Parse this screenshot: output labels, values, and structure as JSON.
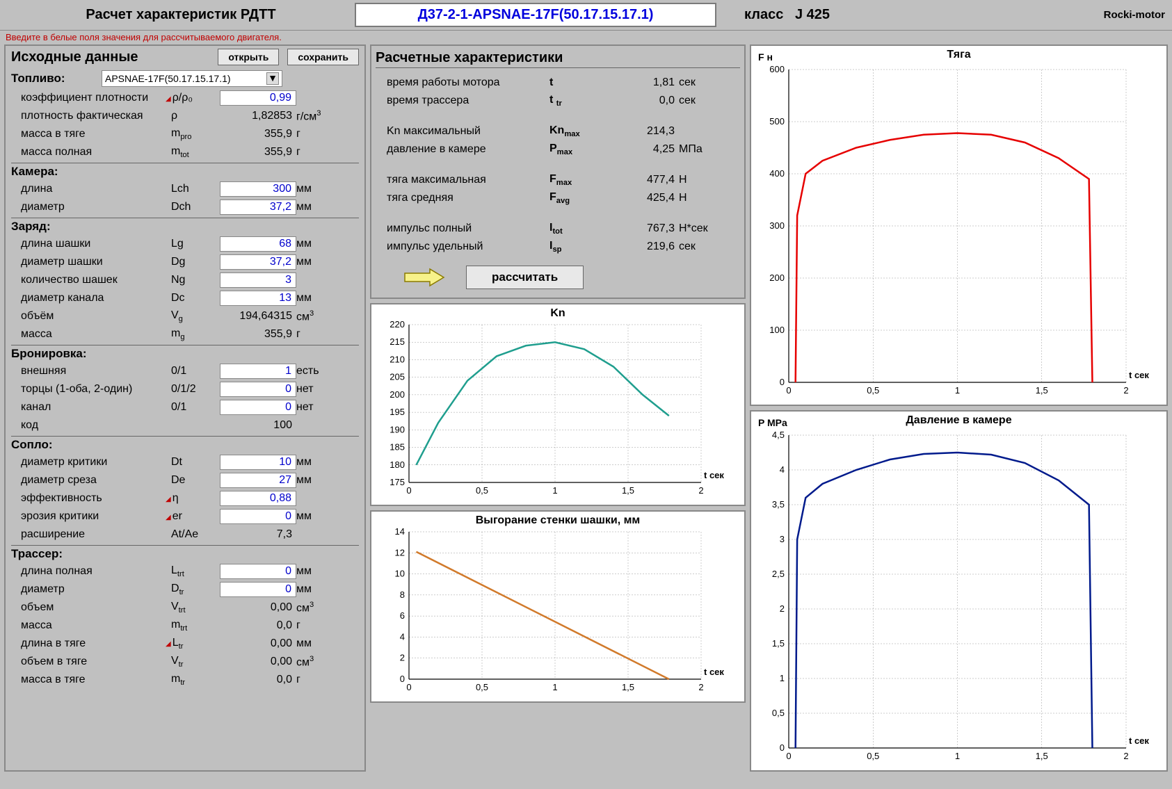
{
  "header": {
    "title": "Расчет характеристик РДТТ",
    "motor_code": "Д37-2-1-APSNAE-17F(50.17.15.17.1)",
    "class_label": "класс",
    "class_value": "J 425",
    "brand": "Rocki-motor"
  },
  "hint": "Введите в белые поля значения для рассчитываемого двигателя.",
  "left": {
    "title": "Исходные данные",
    "btn_open": "открыть",
    "btn_save": "сохранить",
    "fuel": {
      "title": "Топливо:",
      "dropdown": "APSNAE-17F(50.17.15.17.1)",
      "coef_label": "коэффициент плотности",
      "coef_sym": "ρ/ρ₀",
      "coef_val": "0,99",
      "dens_label": "плотность фактическая",
      "dens_sym": "ρ",
      "dens_val": "1,82853",
      "dens_unit": "г/см",
      "mpro_label": "масса в тяге",
      "mpro_sym": "m",
      "mpro_sub": "pro",
      "mpro_val": "355,9",
      "mpro_unit": "г",
      "mtot_label": "масса полная",
      "mtot_sym": "m",
      "mtot_sub": "tot",
      "mtot_val": "355,9",
      "mtot_unit": "г"
    },
    "chamber": {
      "title": "Камера:",
      "len_label": "длина",
      "len_sym": "Lch",
      "len_val": "300",
      "len_unit": "мм",
      "dia_label": "диаметр",
      "dia_sym": "Dch",
      "dia_val": "37,2",
      "dia_unit": "мм"
    },
    "grain": {
      "title": "Заряд:",
      "lg_label": "длина шашки",
      "lg_sym": "Lg",
      "lg_val": "68",
      "lg_unit": "мм",
      "dg_label": "диаметр шашки",
      "dg_sym": "Dg",
      "dg_val": "37,2",
      "dg_unit": "мм",
      "ng_label": "количество шашек",
      "ng_sym": "Ng",
      "ng_val": "3",
      "dc_label": "диаметр канала",
      "dc_sym": "Dc",
      "dc_val": "13",
      "dc_unit": "мм",
      "vg_label": "объём",
      "vg_sym": "V",
      "vg_sub": "g",
      "vg_val": "194,64315",
      "vg_unit": "см",
      "mg_label": "масса",
      "mg_sym": "m",
      "mg_sub": "g",
      "mg_val": "355,9",
      "mg_unit": "г"
    },
    "armor": {
      "title": "Бронировка:",
      "ext_label": "внешняя",
      "ext_sym": "0/1",
      "ext_val": "1",
      "ext_unit": "есть",
      "end_label": "торцы (1-оба, 2-один)",
      "end_sym": "0/1/2",
      "end_val": "0",
      "end_unit": "нет",
      "chan_label": "канал",
      "chan_sym": "0/1",
      "chan_val": "0",
      "chan_unit": "нет",
      "code_label": "код",
      "code_val": "100"
    },
    "nozzle": {
      "title": "Сопло:",
      "dt_label": "диаметр критики",
      "dt_sym": "Dt",
      "dt_val": "10",
      "dt_unit": "мм",
      "de_label": "диаметр среза",
      "de_sym": "De",
      "de_val": "27",
      "de_unit": "мм",
      "eff_label": "эффективность",
      "eff_sym": "η",
      "eff_val": "0,88",
      "er_label": "эрозия критики",
      "er_sym": "er",
      "er_val": "0",
      "er_unit": "мм",
      "exp_label": "расширение",
      "exp_sym": "At/Ae",
      "exp_val": "7,3"
    },
    "tracer": {
      "title": "Трассер:",
      "ltrt_label": "длина полная",
      "ltrt_sym": "L",
      "ltrt_sub": "trt",
      "ltrt_val": "0",
      "ltrt_unit": "мм",
      "dtr_label": "диаметр",
      "dtr_sym": "D",
      "dtr_sub": "tr",
      "dtr_val": "0",
      "dtr_unit": "мм",
      "vtrt_label": "объем",
      "vtrt_sym": "V",
      "vtrt_sub": "trt",
      "vtrt_val": "0,00",
      "vtrt_unit": "см",
      "mtrt_label": "масса",
      "mtrt_sym": "m",
      "mtrt_sub": "trt",
      "mtrt_val": "0,0",
      "mtrt_unit": "г",
      "ltr_label": "длина в тяге",
      "ltr_sym": "L",
      "ltr_sub": "tr",
      "ltr_val": "0,00",
      "ltr_unit": "мм",
      "vtr_label": "объем в тяге",
      "vtr_sym": "V",
      "vtr_sub": "tr",
      "vtr_val": "0,00",
      "vtr_unit": "см",
      "mtr_label": "масса в тяге",
      "mtr_sym": "m",
      "mtr_sub": "tr",
      "mtr_val": "0,0",
      "mtr_unit": "г"
    }
  },
  "calc": {
    "title": "Расчетные характеристики",
    "rows": {
      "t": {
        "label": "время работы мотора",
        "sym": "t",
        "val": "1,81",
        "unit": "сек"
      },
      "ttr": {
        "label": "время трассера",
        "sym": "t",
        "sub": "tr",
        "val": "0,0",
        "unit": "сек"
      },
      "knmax": {
        "label": "Kn максимальный",
        "sym": "Kn",
        "sub": "max",
        "val": "214,3",
        "unit": ""
      },
      "pmax": {
        "label": "давление в камере",
        "sym": "P",
        "sub": "max",
        "val": "4,25",
        "unit": "МПа"
      },
      "fmax": {
        "label": "тяга максимальная",
        "sym": "F",
        "sub": "max",
        "val": "477,4",
        "unit": "Н"
      },
      "favg": {
        "label": "тяга средняя",
        "sym": "F",
        "sub": "avg",
        "val": "425,4",
        "unit": "Н"
      },
      "itot": {
        "label": "импульс полный",
        "sym": "I",
        "sub": "tot",
        "val": "767,3",
        "unit": "Н*сек"
      },
      "isp": {
        "label": "импульс удельный",
        "sym": "I",
        "sub": "sp",
        "val": "219,6",
        "unit": "сек"
      }
    },
    "calc_btn": "рассчитать"
  },
  "charts": {
    "thrust": {
      "title": "Тяга",
      "ylabel": "F н",
      "xlabel": "t сек",
      "color": "#e60000",
      "xlim": [
        0,
        2
      ],
      "xticks": [
        0,
        0.5,
        1,
        1.5,
        2
      ],
      "ylim": [
        0,
        600
      ],
      "yticks": [
        0,
        100,
        200,
        300,
        400,
        500,
        600
      ],
      "points": [
        [
          0.04,
          0
        ],
        [
          0.05,
          320
        ],
        [
          0.1,
          400
        ],
        [
          0.2,
          425
        ],
        [
          0.4,
          450
        ],
        [
          0.6,
          465
        ],
        [
          0.8,
          475
        ],
        [
          1.0,
          478
        ],
        [
          1.2,
          475
        ],
        [
          1.4,
          460
        ],
        [
          1.6,
          430
        ],
        [
          1.78,
          390
        ],
        [
          1.8,
          0
        ]
      ]
    },
    "kn": {
      "title": "Kn",
      "xlabel": "t сек",
      "color": "#1f9e8e",
      "xlim": [
        0,
        2
      ],
      "xticks": [
        0,
        0.5,
        1,
        1.5,
        2
      ],
      "ylim": [
        175,
        220
      ],
      "yticks": [
        175,
        180,
        185,
        190,
        195,
        200,
        205,
        210,
        215,
        220
      ],
      "points": [
        [
          0.05,
          180
        ],
        [
          0.2,
          192
        ],
        [
          0.4,
          204
        ],
        [
          0.6,
          211
        ],
        [
          0.8,
          214
        ],
        [
          1.0,
          215
        ],
        [
          1.2,
          213
        ],
        [
          1.4,
          208
        ],
        [
          1.6,
          200
        ],
        [
          1.78,
          194
        ]
      ]
    },
    "burn": {
      "title": "Выгорание стенки шашки, мм",
      "xlabel": "t сек",
      "color": "#d17a2b",
      "xlim": [
        0,
        2
      ],
      "xticks": [
        0,
        0.5,
        1,
        1.5,
        2
      ],
      "ylim": [
        0,
        14
      ],
      "yticks": [
        0,
        2,
        4,
        6,
        8,
        10,
        12,
        14
      ],
      "points": [
        [
          0.05,
          12.1
        ],
        [
          1.78,
          0
        ]
      ]
    },
    "pressure": {
      "title": "Давление в камере",
      "ylabel": "P MPa",
      "xlabel": "t сек",
      "color": "#001a8c",
      "xlim": [
        0,
        2
      ],
      "xticks": [
        0,
        0.5,
        1,
        1.5,
        2
      ],
      "ylim": [
        0,
        4.5
      ],
      "yticks": [
        0,
        0.5,
        1,
        1.5,
        2,
        2.5,
        3,
        3.5,
        4,
        4.5
      ],
      "points": [
        [
          0.04,
          0
        ],
        [
          0.05,
          3.0
        ],
        [
          0.1,
          3.6
        ],
        [
          0.2,
          3.8
        ],
        [
          0.4,
          4.0
        ],
        [
          0.6,
          4.15
        ],
        [
          0.8,
          4.23
        ],
        [
          1.0,
          4.25
        ],
        [
          1.2,
          4.22
        ],
        [
          1.4,
          4.1
        ],
        [
          1.6,
          3.85
        ],
        [
          1.78,
          3.5
        ],
        [
          1.8,
          0
        ]
      ]
    }
  }
}
